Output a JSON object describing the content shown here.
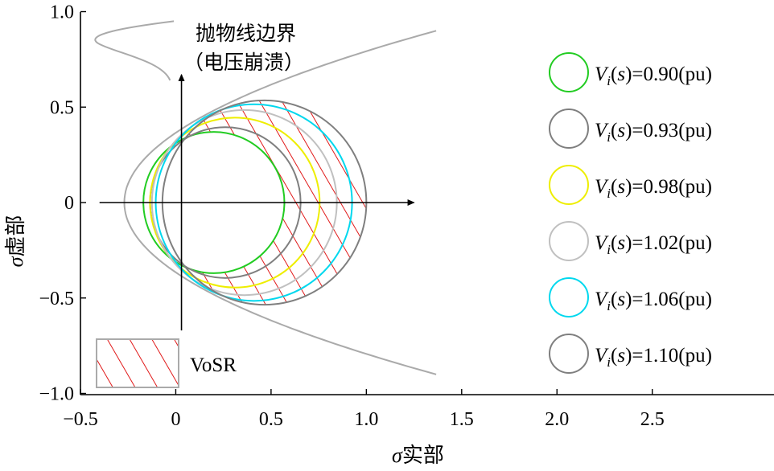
{
  "chart_data": {
    "type": "line",
    "xlabel": "σ实部",
    "ylabel": "σ虚部",
    "xlim": [
      -0.5,
      3.0
    ],
    "ylim": [
      -1.0,
      1.0
    ],
    "x_ticks": [
      {
        "value": -0.5,
        "label": "−0.5"
      },
      {
        "value": 0,
        "label": "0"
      },
      {
        "value": 0.5,
        "label": "0.5"
      },
      {
        "value": 1.0,
        "label": "1.0"
      },
      {
        "value": 1.5,
        "label": "1.5"
      },
      {
        "value": 2.0,
        "label": "2.0"
      },
      {
        "value": 2.5,
        "label": "2.5"
      }
    ],
    "y_ticks": [
      {
        "value": 1.0,
        "label": "1.0"
      },
      {
        "value": 0.5,
        "label": "0.5"
      },
      {
        "value": 0,
        "label": "0"
      },
      {
        "value": -0.5,
        "label": "−0.5"
      },
      {
        "value": -1.0,
        "label": "−1.0"
      }
    ],
    "parabola": {
      "name": "抛物线边界",
      "subname": "（电压崩溃）",
      "color": "#aaaaaa",
      "vertex_x": -0.27,
      "coef": 2.02,
      "y_range": [
        -0.9,
        0.9
      ]
    },
    "series": [
      {
        "name": "Vi(s)=0.90(pu)",
        "v": "0.90",
        "color": "#22cc22",
        "cx": 0.2,
        "cy": 0.0,
        "r": 0.37
      },
      {
        "name": "Vi(s)=0.93(pu)",
        "v": "0.93",
        "color": "#7f7f7f",
        "cx": 0.26,
        "cy": 0.0,
        "r": 0.395
      },
      {
        "name": "Vi(s)=0.98(pu)",
        "v": "0.98",
        "color": "#eeee00",
        "cx": 0.31,
        "cy": 0.0,
        "r": 0.445
      },
      {
        "name": "Vi(s)=1.02(pu)",
        "v": "1.02",
        "color": "#c0c0c0",
        "cx": 0.36,
        "cy": 0.0,
        "r": 0.485
      },
      {
        "name": "Vi(s)=1.06(pu)",
        "v": "1.06",
        "color": "#00d8ee",
        "cx": 0.41,
        "cy": 0.0,
        "r": 0.515
      },
      {
        "name": "Vi(s)=1.10(pu)",
        "v": "1.10",
        "color": "#7f7f7f",
        "cx": 0.465,
        "cy": 0.0,
        "r": 0.535
      }
    ],
    "region": {
      "name": "VoSR",
      "hatch_color": "#dd0000",
      "outer_series_index": 5,
      "inner_series_index": 0
    },
    "arrows": {
      "origin": [
        0,
        0
      ],
      "x_end": 1.25,
      "y_end": 0.67
    },
    "legend_position": "right",
    "legend_entry": {
      "label_prefix": "V",
      "label_sub": "i",
      "label_arg": "(s)=",
      "label_unit": "(pu)"
    }
  }
}
